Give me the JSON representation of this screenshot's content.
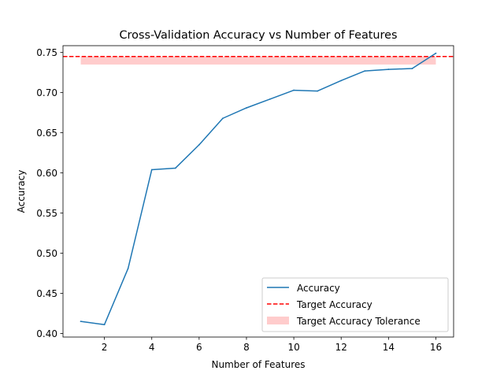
{
  "chart_data": {
    "type": "line",
    "title": "Cross-Validation Accuracy vs Number of Features",
    "xlabel": "Number of Features",
    "ylabel": "Accuracy",
    "xlim": [
      0.25,
      16.75
    ],
    "ylim": [
      0.3955,
      0.7585
    ],
    "x_ticks": [
      2,
      4,
      6,
      8,
      10,
      12,
      14,
      16
    ],
    "y_ticks": [
      0.4,
      0.45,
      0.5,
      0.55,
      0.6,
      0.65,
      0.7,
      0.75
    ],
    "x_tick_labels": [
      "2",
      "4",
      "6",
      "8",
      "10",
      "12",
      "14",
      "16"
    ],
    "y_tick_labels": [
      "0.40",
      "0.45",
      "0.50",
      "0.55",
      "0.60",
      "0.65",
      "0.70",
      "0.75"
    ],
    "grid": false,
    "legend_position": "lower-right",
    "series": [
      {
        "name": "Accuracy",
        "color": "#1f77b4",
        "style": "solid",
        "x": [
          1,
          2,
          3,
          4,
          5,
          6,
          7,
          8,
          9,
          10,
          11,
          12,
          13,
          14,
          15,
          16
        ],
        "values": [
          0.415,
          0.411,
          0.481,
          0.604,
          0.606,
          0.635,
          0.668,
          0.681,
          0.692,
          0.703,
          0.702,
          0.715,
          0.727,
          0.729,
          0.73,
          0.749
        ]
      }
    ],
    "reference_line": {
      "name": "Target Accuracy",
      "color": "#ff0000",
      "style": "dashed",
      "y": 0.745
    },
    "tolerance_band": {
      "name": "Target Accuracy Tolerance",
      "color": "#ff0000",
      "opacity": 0.2,
      "x": [
        1,
        16
      ],
      "y": [
        0.735,
        0.745
      ]
    }
  }
}
